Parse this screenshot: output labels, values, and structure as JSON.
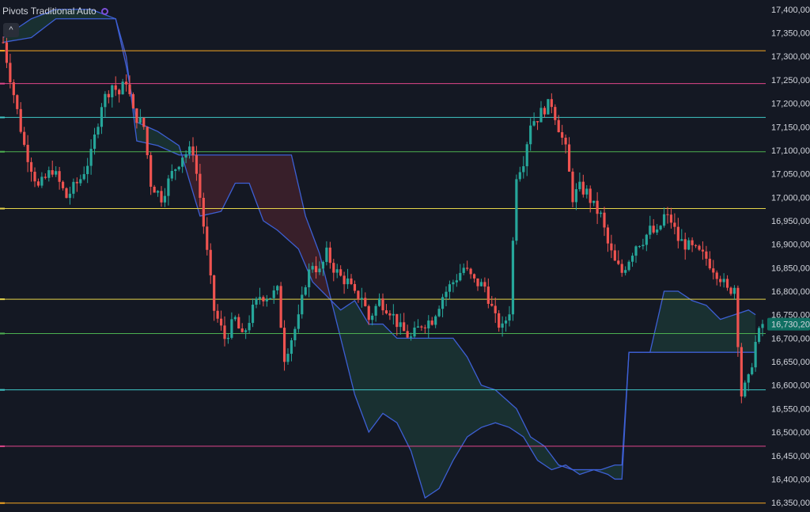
{
  "indicator": {
    "label": "Pivots Traditional Auto",
    "toggle_icon": "chevron-up-icon"
  },
  "colors": {
    "background": "#141823",
    "up": "#26a69a",
    "down": "#ef5350",
    "cloud_line": "#3d5fd4",
    "cloud_bear_fill": "rgba(150,50,60,0.28)",
    "cloud_bull_fill": "rgba(40,120,90,0.25)",
    "pivot_orange": "#f5a623",
    "pivot_magenta": "#e0458a",
    "pivot_teal": "#3fc6c6",
    "pivot_green": "#4caf50",
    "pivot_yellow": "#e6d44a",
    "price_label_bg": "#0f6f62"
  },
  "chart_data": {
    "type": "candlestick",
    "y_axis": {
      "range": [
        16330,
        17420
      ],
      "ticks": [
        "17,400,00",
        "17,350,00",
        "17,300,00",
        "17,250,00",
        "17,200,00",
        "17,150,00",
        "17,100,00",
        "17,050,00",
        "17,000,00",
        "16,950,00",
        "16,900,00",
        "16,850,00",
        "16,800,00",
        "16,750,00",
        "16,700,00",
        "16,650,00",
        "16,600,00",
        "16,550,00",
        "16,500,00",
        "16,450,00",
        "16,400,00",
        "16,350,00"
      ],
      "last_price_label": "16,730,20",
      "last_price": 16730
    },
    "pivot_levels": [
      {
        "value": 17312,
        "color": "#f5a623"
      },
      {
        "value": 17242,
        "color": "#e0458a"
      },
      {
        "value": 17170,
        "color": "#3fc6c6"
      },
      {
        "value": 17097,
        "color": "#4caf50"
      },
      {
        "value": 16976,
        "color": "#e6d44a"
      },
      {
        "value": 16783,
        "color": "#e6d44a"
      },
      {
        "value": 16710,
        "color": "#4caf50"
      },
      {
        "value": 16590,
        "color": "#3fc6c6"
      },
      {
        "value": 16470,
        "color": "#e0458a"
      },
      {
        "value": 16349,
        "color": "#f5a623"
      }
    ],
    "price_path": [
      [
        0,
        17330
      ],
      [
        3,
        17220
      ],
      [
        6,
        17110
      ],
      [
        10,
        17020
      ],
      [
        14,
        17060
      ],
      [
        18,
        17000
      ],
      [
        22,
        17040
      ],
      [
        25,
        17090
      ],
      [
        28,
        17200
      ],
      [
        31,
        17240
      ],
      [
        33,
        17220
      ],
      [
        35,
        17250
      ],
      [
        37,
        17180
      ],
      [
        40,
        17150
      ],
      [
        42,
        17030
      ],
      [
        45,
        17000
      ],
      [
        48,
        17050
      ],
      [
        51,
        17090
      ],
      [
        54,
        17100
      ],
      [
        56,
        17000
      ],
      [
        58,
        16880
      ],
      [
        60,
        16760
      ],
      [
        63,
        16700
      ],
      [
        66,
        16740
      ],
      [
        68,
        16700
      ],
      [
        71,
        16760
      ],
      [
        73,
        16790
      ],
      [
        76,
        16790
      ],
      [
        78,
        16800
      ],
      [
        80,
        16660
      ],
      [
        82,
        16700
      ],
      [
        84,
        16740
      ],
      [
        86,
        16820
      ],
      [
        88,
        16860
      ],
      [
        90,
        16840
      ],
      [
        92,
        16880
      ],
      [
        94,
        16850
      ],
      [
        96,
        16830
      ],
      [
        98,
        16820
      ],
      [
        100,
        16790
      ],
      [
        102,
        16790
      ],
      [
        104,
        16740
      ],
      [
        107,
        16780
      ],
      [
        110,
        16760
      ],
      [
        113,
        16720
      ],
      [
        116,
        16700
      ],
      [
        119,
        16730
      ],
      [
        122,
        16740
      ],
      [
        125,
        16790
      ],
      [
        128,
        16820
      ],
      [
        131,
        16850
      ],
      [
        134,
        16820
      ],
      [
        137,
        16810
      ],
      [
        140,
        16740
      ],
      [
        142,
        16720
      ],
      [
        144,
        16760
      ],
      [
        146,
        17050
      ],
      [
        148,
        17080
      ],
      [
        150,
        17160
      ],
      [
        152,
        17170
      ],
      [
        154,
        17190
      ],
      [
        156,
        17200
      ],
      [
        158,
        17150
      ],
      [
        160,
        17100
      ],
      [
        162,
        17000
      ],
      [
        164,
        17020
      ],
      [
        166,
        17010
      ],
      [
        168,
        16980
      ],
      [
        170,
        16960
      ],
      [
        172,
        16900
      ],
      [
        174,
        16860
      ],
      [
        176,
        16840
      ],
      [
        178,
        16870
      ],
      [
        180,
        16900
      ],
      [
        182,
        16910
      ],
      [
        184,
        16930
      ],
      [
        186,
        16920
      ],
      [
        188,
        16960
      ],
      [
        190,
        16950
      ],
      [
        192,
        16910
      ],
      [
        194,
        16900
      ],
      [
        196,
        16890
      ],
      [
        198,
        16880
      ],
      [
        200,
        16870
      ],
      [
        202,
        16850
      ],
      [
        204,
        16830
      ],
      [
        206,
        16800
      ],
      [
        208,
        16810
      ],
      [
        210,
        16580
      ],
      [
        212,
        16610
      ],
      [
        214,
        16690
      ],
      [
        216,
        16730
      ]
    ],
    "cloud_a": [
      [
        0,
        17340
      ],
      [
        8,
        17380
      ],
      [
        15,
        17400
      ],
      [
        25,
        17400
      ],
      [
        32,
        17380
      ],
      [
        35,
        17280
      ],
      [
        38,
        17160
      ],
      [
        44,
        17140
      ],
      [
        50,
        17110
      ],
      [
        56,
        16960
      ],
      [
        62,
        16970
      ],
      [
        66,
        17030
      ],
      [
        70,
        17030
      ],
      [
        74,
        16950
      ],
      [
        78,
        16930
      ],
      [
        84,
        16890
      ],
      [
        88,
        16820
      ],
      [
        92,
        16790
      ],
      [
        96,
        16760
      ],
      [
        100,
        16780
      ],
      [
        104,
        16730
      ],
      [
        108,
        16730
      ],
      [
        112,
        16700
      ],
      [
        116,
        16700
      ],
      [
        120,
        16700
      ],
      [
        124,
        16700
      ],
      [
        128,
        16700
      ],
      [
        132,
        16660
      ],
      [
        136,
        16600
      ],
      [
        140,
        16590
      ],
      [
        146,
        16550
      ],
      [
        150,
        16490
      ],
      [
        154,
        16470
      ],
      [
        158,
        16430
      ],
      [
        162,
        16420
      ],
      [
        170,
        16420
      ],
      [
        174,
        16430
      ],
      [
        176,
        16430
      ],
      [
        178,
        16670
      ],
      [
        184,
        16670
      ],
      [
        188,
        16800
      ],
      [
        192,
        16800
      ],
      [
        196,
        16780
      ],
      [
        200,
        16770
      ],
      [
        204,
        16740
      ],
      [
        208,
        16750
      ],
      [
        212,
        16760
      ],
      [
        214,
        16750
      ]
    ],
    "cloud_b": [
      [
        0,
        17330
      ],
      [
        8,
        17340
      ],
      [
        15,
        17380
      ],
      [
        25,
        17380
      ],
      [
        32,
        17380
      ],
      [
        35,
        17300
      ],
      [
        38,
        17120
      ],
      [
        44,
        17110
      ],
      [
        50,
        17090
      ],
      [
        56,
        17090
      ],
      [
        62,
        17090
      ],
      [
        66,
        17090
      ],
      [
        70,
        17090
      ],
      [
        74,
        17090
      ],
      [
        78,
        17090
      ],
      [
        82,
        17090
      ],
      [
        86,
        16960
      ],
      [
        90,
        16880
      ],
      [
        96,
        16700
      ],
      [
        100,
        16580
      ],
      [
        104,
        16500
      ],
      [
        108,
        16540
      ],
      [
        112,
        16520
      ],
      [
        116,
        16460
      ],
      [
        120,
        16360
      ],
      [
        124,
        16380
      ],
      [
        128,
        16440
      ],
      [
        132,
        16490
      ],
      [
        136,
        16510
      ],
      [
        140,
        16520
      ],
      [
        144,
        16510
      ],
      [
        148,
        16490
      ],
      [
        152,
        16440
      ],
      [
        156,
        16420
      ],
      [
        160,
        16430
      ],
      [
        164,
        16410
      ],
      [
        168,
        16420
      ],
      [
        172,
        16410
      ],
      [
        174,
        16400
      ],
      [
        176,
        16400
      ],
      [
        178,
        16670
      ],
      [
        184,
        16670
      ],
      [
        190,
        16670
      ],
      [
        196,
        16670
      ],
      [
        204,
        16670
      ],
      [
        212,
        16670
      ],
      [
        214,
        16670
      ]
    ]
  }
}
